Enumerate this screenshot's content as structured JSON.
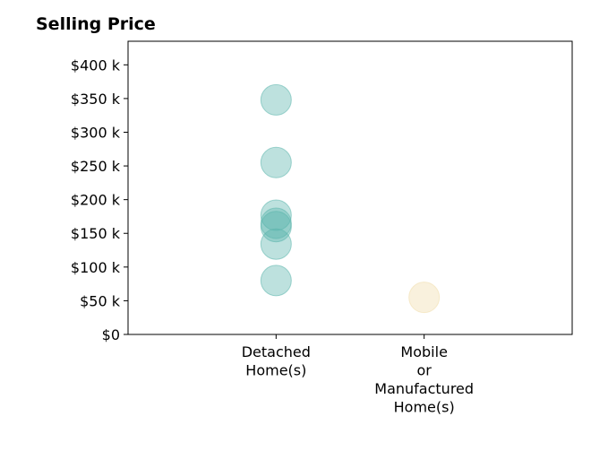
{
  "chart_data": {
    "type": "scatter",
    "title": "Selling Price",
    "xlabel": "",
    "ylabel": "",
    "categories": [
      [
        "Detached",
        "Home(s)"
      ],
      [
        "Mobile",
        "or",
        "Manufactured",
        "Home(s)"
      ]
    ],
    "xlim": [
      0,
      3
    ],
    "ylim": [
      0,
      435000
    ],
    "yticks": [
      0,
      50000,
      100000,
      150000,
      200000,
      250000,
      300000,
      350000,
      400000
    ],
    "ytick_labels": [
      "$0",
      "$50 k",
      "$100 k",
      "$150 k",
      "$200 k",
      "$250 k",
      "$300 k",
      "$350 k",
      "$400 k"
    ],
    "grid": false,
    "series": [
      {
        "category_index": 0,
        "color": "#5ab4ac",
        "values": [
          348000,
          255000,
          177000,
          165000,
          160000,
          134000,
          80000
        ]
      },
      {
        "category_index": 1,
        "color": "#f0dcaa",
        "values": [
          55000
        ]
      }
    ]
  }
}
